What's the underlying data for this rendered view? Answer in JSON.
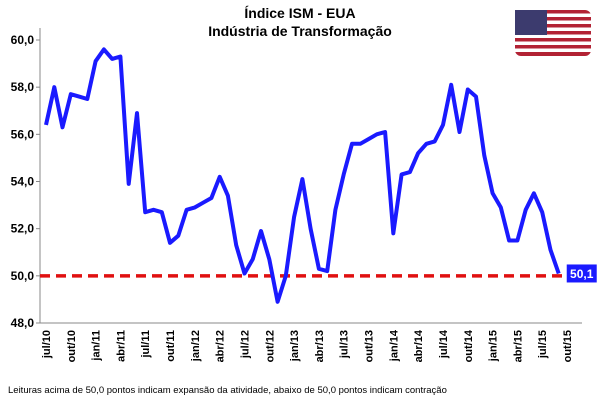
{
  "chart_data": {
    "type": "line",
    "title": "Índice ISM - EUA",
    "subtitle": "Indústria de Transformação",
    "categories": [
      "jul/10",
      null,
      null,
      "out/10",
      null,
      null,
      "jan/11",
      null,
      null,
      "abr/11",
      null,
      null,
      "jul/11",
      null,
      null,
      "out/11",
      null,
      null,
      "jan/12",
      null,
      null,
      "abr/12",
      null,
      null,
      "jul/12",
      null,
      null,
      "out/12",
      null,
      null,
      "jan/13",
      null,
      null,
      "abr/13",
      null,
      null,
      "jul/13",
      null,
      null,
      "out/13",
      null,
      null,
      "jan/14",
      null,
      null,
      "abr/14",
      null,
      null,
      "jul/14",
      null,
      null,
      "out/14",
      null,
      null,
      "jan/15",
      null,
      null,
      "abr/15",
      null,
      null,
      "jul/15",
      null,
      null,
      "out/15"
    ],
    "series": [
      {
        "name": "Índice ISM",
        "color": "#1a1aff",
        "values": [
          56.4,
          58.0,
          56.3,
          57.7,
          57.6,
          57.5,
          59.1,
          59.6,
          59.2,
          59.3,
          53.9,
          56.9,
          52.7,
          52.8,
          52.7,
          51.4,
          51.7,
          52.8,
          52.9,
          53.1,
          53.3,
          54.2,
          53.4,
          51.3,
          50.1,
          50.7,
          51.9,
          50.7,
          48.9,
          50.0,
          52.5,
          54.1,
          52.0,
          50.3,
          50.2,
          52.8,
          54.3,
          55.6,
          55.6,
          55.8,
          56.0,
          56.1,
          51.8,
          54.3,
          54.4,
          55.2,
          55.6,
          55.7,
          56.4,
          58.1,
          56.1,
          57.9,
          57.6,
          55.1,
          53.5,
          52.9,
          51.5,
          51.5,
          52.8,
          53.5,
          52.7,
          51.1,
          50.1,
          null
        ],
        "value_labels": [
          null,
          null,
          null,
          null,
          null,
          null,
          null,
          null,
          null,
          null,
          null,
          null,
          null,
          null,
          null,
          null,
          null,
          null,
          null,
          null,
          null,
          null,
          null,
          null,
          null,
          null,
          null,
          null,
          null,
          null,
          null,
          null,
          null,
          null,
          null,
          null,
          null,
          null,
          null,
          null,
          null,
          null,
          null,
          null,
          null,
          null,
          null,
          null,
          null,
          null,
          null,
          null,
          null,
          null,
          null,
          null,
          null,
          null,
          null,
          null,
          null,
          null,
          "50,1",
          null
        ]
      }
    ],
    "ylim": [
      48,
      60
    ],
    "yticks": [
      {
        "value": 48,
        "label": "48,0"
      },
      {
        "value": 50,
        "label": "50,0"
      },
      {
        "value": 52,
        "label": "52,0"
      },
      {
        "value": 54,
        "label": "54,0"
      },
      {
        "value": 56,
        "label": "56,0"
      },
      {
        "value": 58,
        "label": "58,0"
      },
      {
        "value": 60,
        "label": "60,0"
      }
    ],
    "reference_line": {
      "value": 50,
      "color": "#e01010"
    },
    "footnote": "Leituras acima de 50,0 pontos indicam expansão da atividade, abaixo de 50,0 pontos indicam contração"
  }
}
